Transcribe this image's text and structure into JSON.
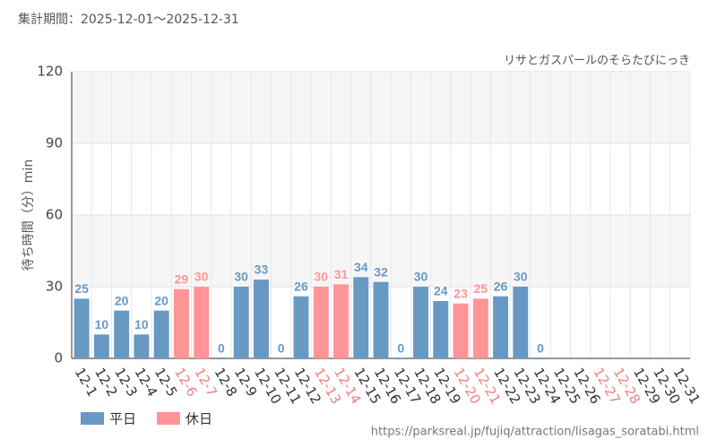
{
  "chart_data": {
    "type": "bar",
    "subtitle": "集計期間：2025-12-01～2025-12-31",
    "annotation": "リサとガスパールのそらたびにっき",
    "y_label": "待ち時間（分）min",
    "source": "https://parksreal.jp/fujiq/attraction/lisagas_soratabi.html",
    "categories": [
      "12-1",
      "12-2",
      "12-3",
      "12-4",
      "12-5",
      "12-6",
      "12-7",
      "12-8",
      "12-9",
      "12-10",
      "12-11",
      "12-12",
      "12-13",
      "12-14",
      "12-15",
      "12-16",
      "12-17",
      "12-18",
      "12-19",
      "12-20",
      "12-21",
      "12-22",
      "12-23",
      "12-24",
      "12-25",
      "12-26",
      "12-27",
      "12-28",
      "12-29",
      "12-30",
      "12-31"
    ],
    "category_label_colors": [
      "#333",
      "#333",
      "#333",
      "#333",
      "#333",
      "#f08080",
      "#f08080",
      "#333",
      "#333",
      "#333",
      "#333",
      "#333",
      "#f08080",
      "#f08080",
      "#333",
      "#333",
      "#333",
      "#333",
      "#333",
      "#f08080",
      "#f08080",
      "#333",
      "#333",
      "#333",
      "#333",
      "#333",
      "#f08080",
      "#f08080",
      "#333",
      "#333",
      "#333"
    ],
    "series": [
      {
        "name": "平日",
        "color": "#6899c3",
        "values": [
          25,
          10,
          20,
          10,
          20,
          null,
          null,
          0,
          30,
          33,
          0,
          26,
          null,
          null,
          34,
          32,
          0,
          30,
          24,
          null,
          null,
          26,
          30,
          0,
          null,
          null,
          null,
          null,
          null,
          null,
          null
        ]
      },
      {
        "name": "休日",
        "color": "#ff9596",
        "values": [
          null,
          null,
          null,
          null,
          null,
          29,
          30,
          null,
          null,
          null,
          null,
          null,
          30,
          31,
          null,
          null,
          null,
          null,
          null,
          23,
          25,
          null,
          null,
          null,
          null,
          null,
          null,
          null,
          null,
          null,
          null
        ]
      }
    ],
    "ylim": [
      0,
      120
    ],
    "yticks": [
      0,
      30,
      60,
      90,
      120
    ],
    "grid": true
  }
}
